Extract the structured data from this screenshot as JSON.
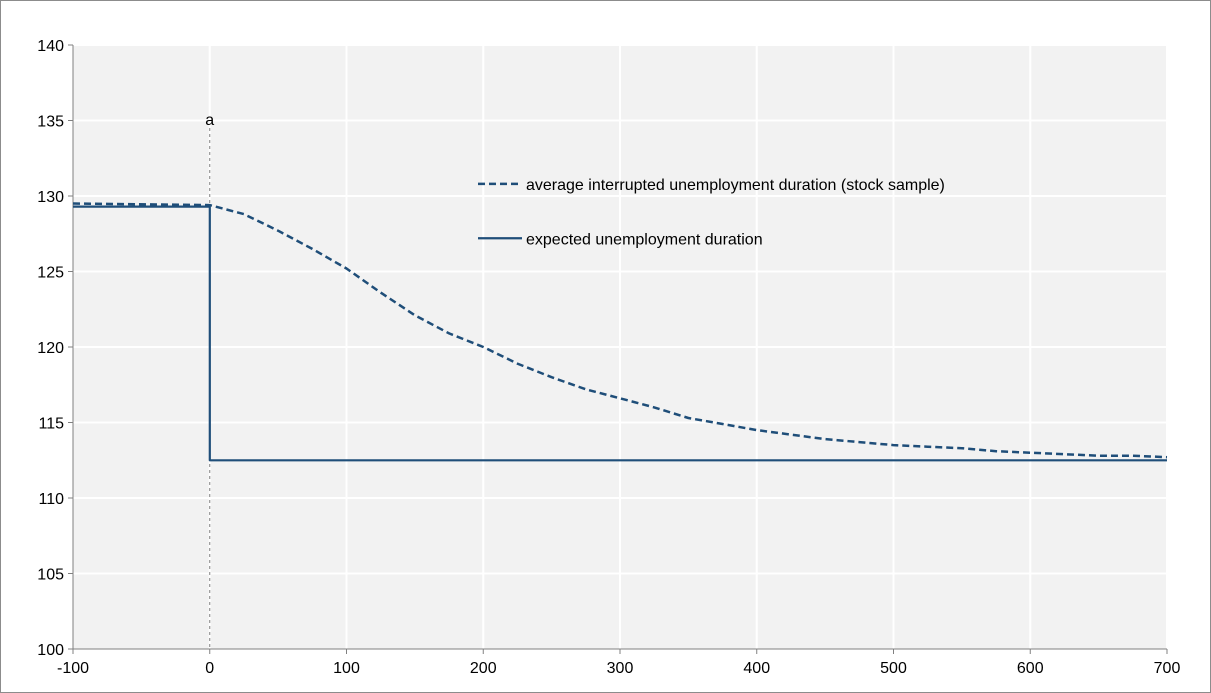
{
  "chart_data": {
    "type": "line",
    "title": "",
    "xlabel": "",
    "ylabel": "",
    "xlim": [
      -100,
      700
    ],
    "ylim": [
      100,
      140
    ],
    "x_ticks": [
      -100,
      0,
      100,
      200,
      300,
      400,
      500,
      600,
      700
    ],
    "y_ticks": [
      100,
      105,
      110,
      115,
      120,
      125,
      130,
      135,
      140
    ],
    "grid": true,
    "legend_position": "top-right",
    "colors": {
      "series": "#1f4e79",
      "grid": "#e6e6e6",
      "plot_background": "#f2f2f2",
      "annotation_line": "#808080"
    },
    "annotation": {
      "label": "a",
      "x": 0
    },
    "series": [
      {
        "name": "average interrupted unemployment duration (stock sample)",
        "style": "dashed",
        "x": [
          -100,
          0,
          25,
          50,
          75,
          100,
          125,
          150,
          175,
          200,
          225,
          250,
          275,
          300,
          325,
          350,
          375,
          400,
          425,
          450,
          475,
          500,
          525,
          550,
          575,
          600,
          625,
          650,
          675,
          700
        ],
        "y": [
          129.5,
          129.4,
          128.8,
          127.7,
          126.5,
          125.2,
          123.6,
          122.1,
          120.9,
          120.0,
          118.9,
          118.0,
          117.2,
          116.6,
          116.0,
          115.3,
          114.9,
          114.5,
          114.2,
          113.9,
          113.7,
          113.5,
          113.4,
          113.3,
          113.1,
          113.0,
          112.9,
          112.8,
          112.8,
          112.7
        ]
      },
      {
        "name": "expected unemployment duration",
        "style": "solid",
        "x": [
          -100,
          0,
          0,
          700
        ],
        "y": [
          129.3,
          129.3,
          112.5,
          112.5
        ]
      }
    ]
  }
}
